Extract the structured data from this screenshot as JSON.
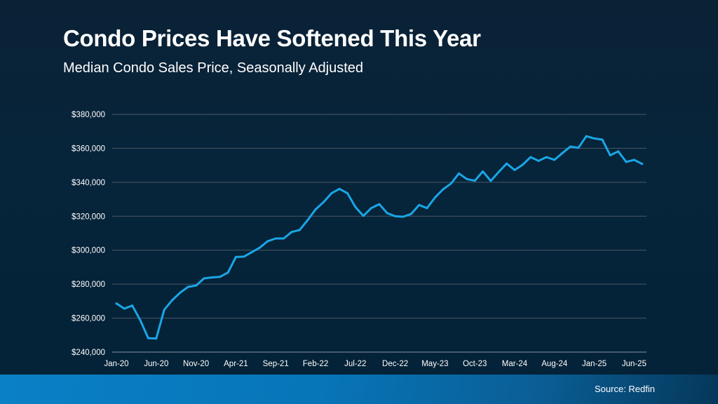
{
  "header": {
    "title": "Condo Prices Have Softened This Year",
    "subtitle": "Median Condo Sales Price, Seasonally Adjusted"
  },
  "footer": {
    "source": "Source: Redfin"
  },
  "colors": {
    "line": "#1aa6e6",
    "grid": "#4a5866",
    "background": "#06243a",
    "footer": "#0a80c6"
  },
  "chart_data": {
    "type": "line",
    "title": "Condo Prices Have Softened This Year",
    "subtitle": "Median Condo Sales Price, Seasonally Adjusted",
    "xlabel": "",
    "ylabel": "",
    "ylim": [
      240000,
      380000
    ],
    "grid": true,
    "y_ticks": [
      "$240,000",
      "$260,000",
      "$280,000",
      "$300,000",
      "$320,000",
      "$340,000",
      "$360,000",
      "$380,000"
    ],
    "y_tick_values": [
      240000,
      260000,
      280000,
      300000,
      320000,
      340000,
      360000,
      380000
    ],
    "x_tick_labels": [
      "Jan-20",
      "Jun-20",
      "Nov-20",
      "Apr-21",
      "Sep-21",
      "Feb-22",
      "Jul-22",
      "Dec-22",
      "May-23",
      "Oct-23",
      "Mar-24",
      "Aug-24",
      "Jan-25",
      "Jun-25"
    ],
    "x_start": "Jan-20",
    "x_end": "Jul-25",
    "series": [
      {
        "values": [
          268600,
          265600,
          267400,
          258700,
          248200,
          248000,
          264900,
          270500,
          275000,
          278400,
          279200,
          283400,
          284000,
          284300,
          286800,
          296000,
          296200,
          298800,
          301500,
          305300,
          306900,
          306900,
          310700,
          311900,
          317600,
          324000,
          328300,
          333500,
          336100,
          333600,
          325500,
          320200,
          324800,
          327100,
          321800,
          320000,
          319700,
          321300,
          326600,
          324800,
          331000,
          335800,
          339200,
          345200,
          341900,
          340900,
          346400,
          340800,
          346100,
          351000,
          347200,
          350300,
          354800,
          352600,
          354800,
          353200,
          357200,
          361000,
          360300,
          367100,
          365800,
          365100,
          355900,
          358200,
          352000,
          353200,
          350800
        ]
      }
    ]
  }
}
